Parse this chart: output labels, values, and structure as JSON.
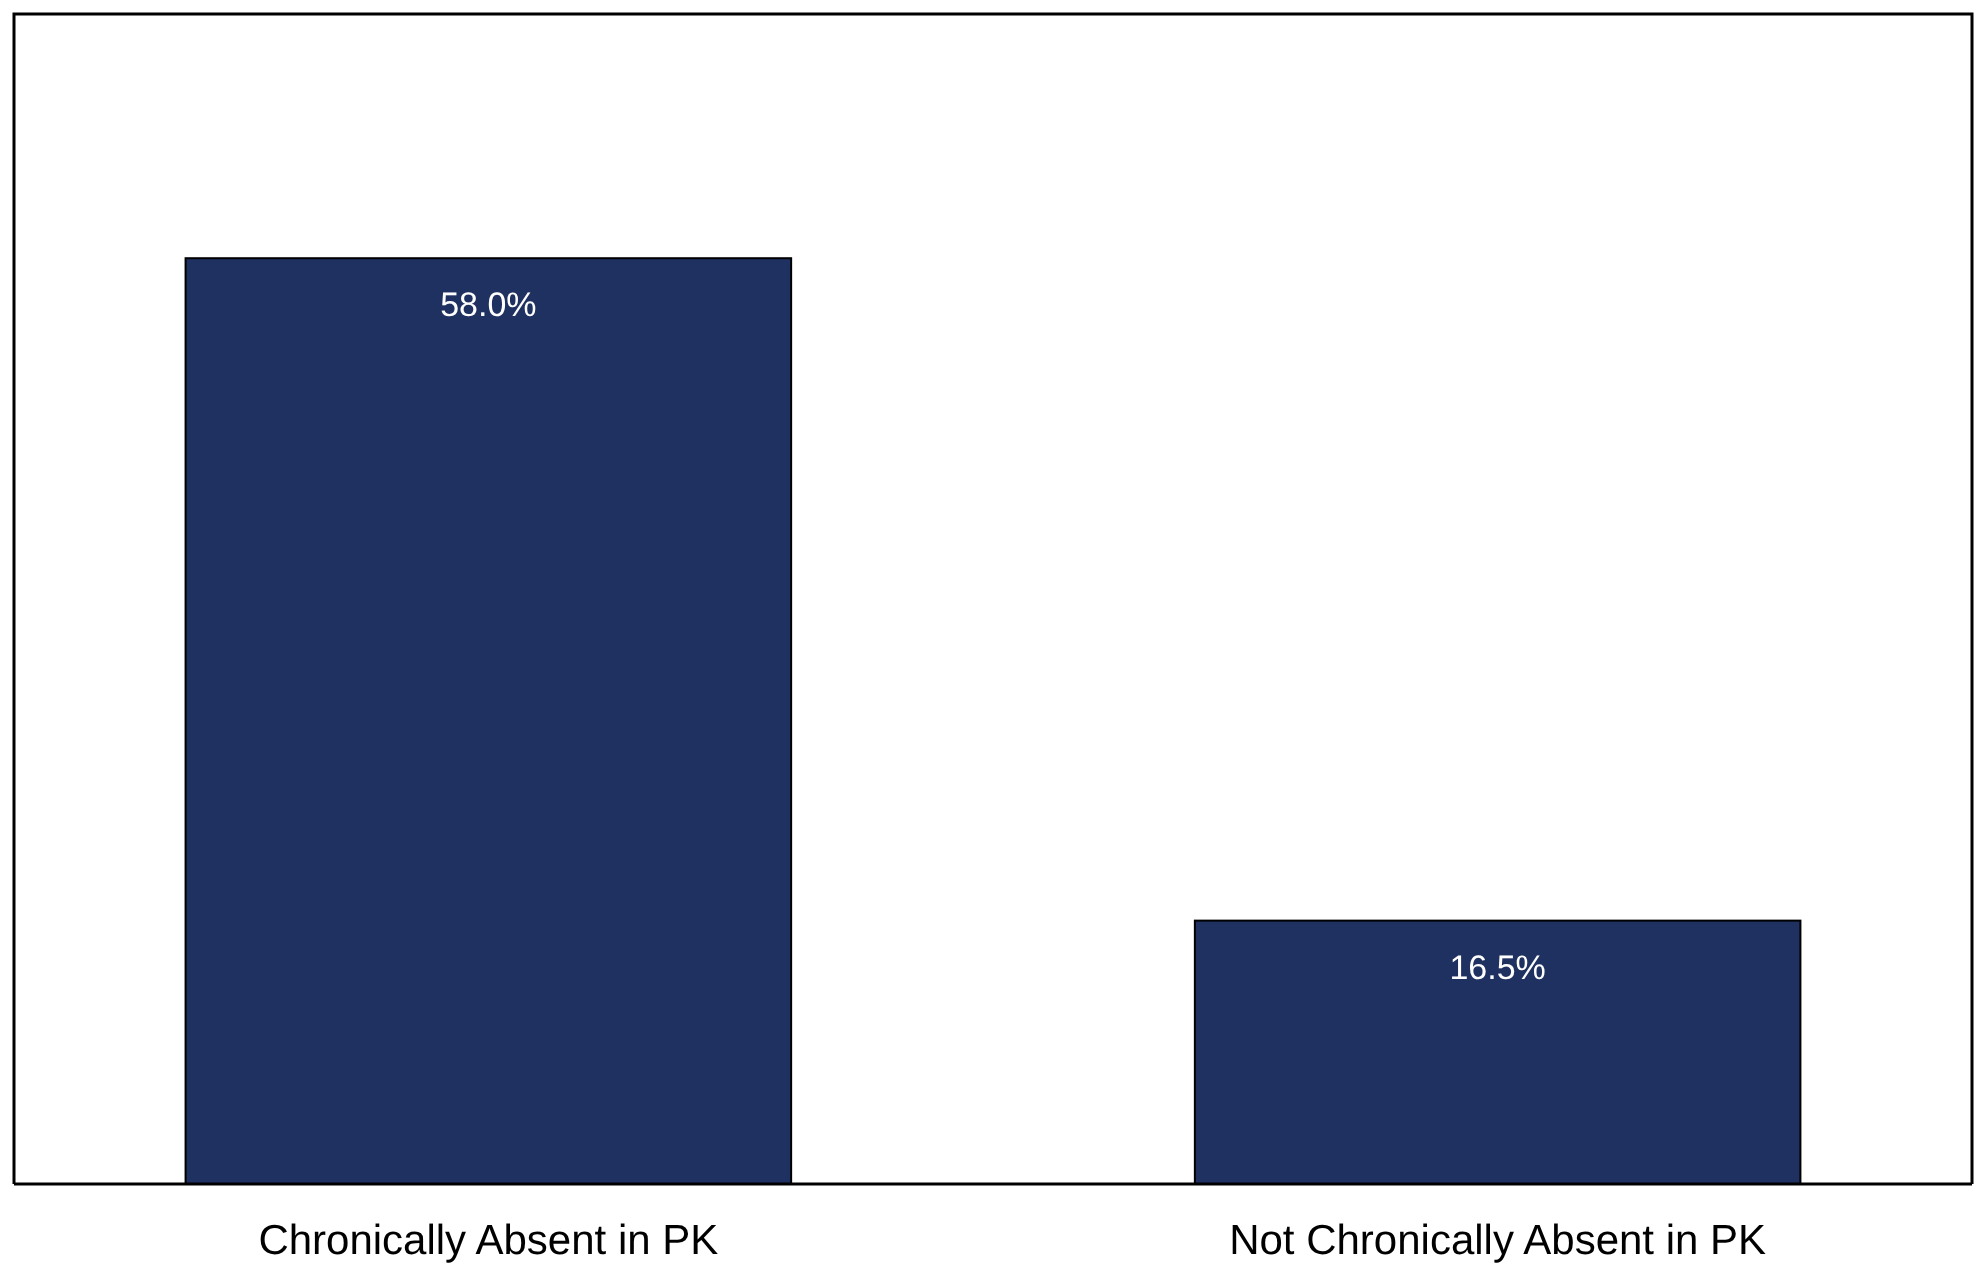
{
  "chart_data": {
    "type": "bar",
    "categories": [
      "Chronically Absent in PK",
      "Not Chronically Absent in PK"
    ],
    "values": [
      58.0,
      16.5
    ],
    "value_labels": [
      "58.0%",
      "16.5%"
    ],
    "color": "#1f3160",
    "ylim": [
      0,
      73.3
    ],
    "tick_labels": "x"
  }
}
